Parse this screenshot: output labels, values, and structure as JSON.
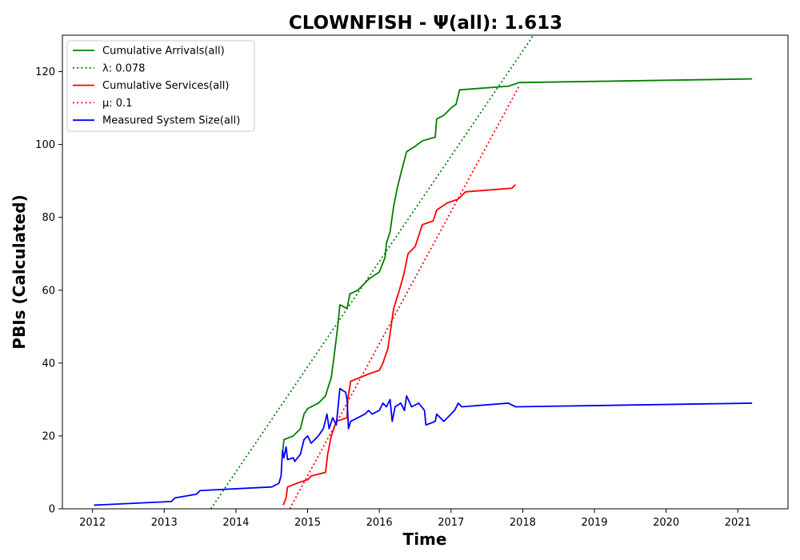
{
  "chart_data": {
    "type": "line",
    "title": "CLOWNFISH -  Ψ(all): 1.613",
    "xlabel": "Time",
    "ylabel": "PBIs (Calculated)",
    "xlim": [
      2011.58,
      2021.7
    ],
    "ylim": [
      0,
      130
    ],
    "xticks": [
      2012,
      2013,
      2014,
      2015,
      2016,
      2017,
      2018,
      2019,
      2020,
      2021
    ],
    "yticks": [
      0,
      20,
      40,
      60,
      80,
      100,
      120
    ],
    "grid": false,
    "legend_position": "top-left",
    "colors": {
      "arrivals": "#008000",
      "services": "#ff0000",
      "system_size": "#0000ff"
    },
    "series": [
      {
        "name": "Cumulative Arrivals(all)",
        "style": "solid",
        "color": "#008000",
        "points": [
          [
            2014.65,
            15
          ],
          [
            2014.66,
            17
          ],
          [
            2014.67,
            19
          ],
          [
            2014.8,
            20
          ],
          [
            2014.9,
            22
          ],
          [
            2014.95,
            26
          ],
          [
            2015.0,
            27.5
          ],
          [
            2015.15,
            29
          ],
          [
            2015.25,
            31
          ],
          [
            2015.28,
            33
          ],
          [
            2015.33,
            36
          ],
          [
            2015.37,
            42
          ],
          [
            2015.42,
            50
          ],
          [
            2015.45,
            56
          ],
          [
            2015.55,
            55
          ],
          [
            2015.59,
            59
          ],
          [
            2015.7,
            60
          ],
          [
            2015.85,
            63
          ],
          [
            2016.0,
            65
          ],
          [
            2016.08,
            69
          ],
          [
            2016.1,
            73
          ],
          [
            2016.15,
            76
          ],
          [
            2016.2,
            83
          ],
          [
            2016.25,
            88
          ],
          [
            2016.3,
            92
          ],
          [
            2016.38,
            98
          ],
          [
            2016.5,
            99.5
          ],
          [
            2016.6,
            101
          ],
          [
            2016.78,
            102
          ],
          [
            2016.8,
            107
          ],
          [
            2016.9,
            108
          ],
          [
            2017.0,
            110
          ],
          [
            2017.07,
            111
          ],
          [
            2017.12,
            115
          ],
          [
            2017.8,
            116
          ],
          [
            2017.95,
            117
          ],
          [
            2021.2,
            118
          ]
        ]
      },
      {
        "name": "λ: 0.078",
        "style": "dotted",
        "color": "#008000",
        "points": [
          [
            2013.65,
            0
          ],
          [
            2018.15,
            130
          ]
        ]
      },
      {
        "name": "Cumulative Services(all)",
        "style": "solid",
        "color": "#ff0000",
        "points": [
          [
            2014.66,
            1
          ],
          [
            2014.7,
            3
          ],
          [
            2014.72,
            6
          ],
          [
            2014.85,
            7
          ],
          [
            2015.0,
            8
          ],
          [
            2015.05,
            9
          ],
          [
            2015.25,
            10
          ],
          [
            2015.28,
            15
          ],
          [
            2015.33,
            20
          ],
          [
            2015.4,
            24
          ],
          [
            2015.55,
            25
          ],
          [
            2015.56,
            30
          ],
          [
            2015.6,
            35
          ],
          [
            2015.85,
            37
          ],
          [
            2016.0,
            38
          ],
          [
            2016.05,
            40
          ],
          [
            2016.12,
            44
          ],
          [
            2016.2,
            55
          ],
          [
            2016.28,
            60
          ],
          [
            2016.35,
            65
          ],
          [
            2016.4,
            70
          ],
          [
            2016.5,
            72
          ],
          [
            2016.6,
            78
          ],
          [
            2016.75,
            79
          ],
          [
            2016.8,
            82
          ],
          [
            2016.95,
            84
          ],
          [
            2017.1,
            85
          ],
          [
            2017.2,
            87
          ],
          [
            2017.85,
            88
          ],
          [
            2017.9,
            89
          ]
        ]
      },
      {
        "name": "μ: 0.1",
        "style": "dotted",
        "color": "#ff0000",
        "points": [
          [
            2014.75,
            0
          ],
          [
            2017.95,
            116
          ]
        ]
      },
      {
        "name": "Measured System Size(all)",
        "style": "solid",
        "color": "#0000ff",
        "points": [
          [
            2012.02,
            1
          ],
          [
            2013.1,
            2
          ],
          [
            2013.15,
            3
          ],
          [
            2013.45,
            4
          ],
          [
            2013.5,
            5
          ],
          [
            2014.5,
            6
          ],
          [
            2014.6,
            7
          ],
          [
            2014.63,
            9
          ],
          [
            2014.65,
            16
          ],
          [
            2014.67,
            14
          ],
          [
            2014.7,
            17
          ],
          [
            2014.72,
            13.5
          ],
          [
            2014.8,
            14
          ],
          [
            2014.82,
            13
          ],
          [
            2014.9,
            15
          ],
          [
            2014.95,
            19
          ],
          [
            2015.0,
            20
          ],
          [
            2015.05,
            18
          ],
          [
            2015.15,
            20
          ],
          [
            2015.22,
            22
          ],
          [
            2015.27,
            26
          ],
          [
            2015.3,
            22
          ],
          [
            2015.35,
            25
          ],
          [
            2015.4,
            23
          ],
          [
            2015.45,
            33
          ],
          [
            2015.53,
            32
          ],
          [
            2015.55,
            30
          ],
          [
            2015.57,
            22
          ],
          [
            2015.6,
            24
          ],
          [
            2015.7,
            25
          ],
          [
            2015.8,
            26
          ],
          [
            2015.85,
            27
          ],
          [
            2015.9,
            26
          ],
          [
            2016.0,
            27
          ],
          [
            2016.05,
            29
          ],
          [
            2016.1,
            28
          ],
          [
            2016.15,
            30
          ],
          [
            2016.18,
            24
          ],
          [
            2016.22,
            28
          ],
          [
            2016.3,
            29
          ],
          [
            2016.35,
            27
          ],
          [
            2016.38,
            31
          ],
          [
            2016.45,
            28
          ],
          [
            2016.55,
            29
          ],
          [
            2016.63,
            27
          ],
          [
            2016.65,
            23
          ],
          [
            2016.78,
            24
          ],
          [
            2016.8,
            26
          ],
          [
            2016.9,
            24
          ],
          [
            2017.05,
            27
          ],
          [
            2017.1,
            29
          ],
          [
            2017.15,
            28
          ],
          [
            2017.8,
            29
          ],
          [
            2017.9,
            28
          ],
          [
            2021.2,
            29
          ]
        ]
      }
    ]
  }
}
